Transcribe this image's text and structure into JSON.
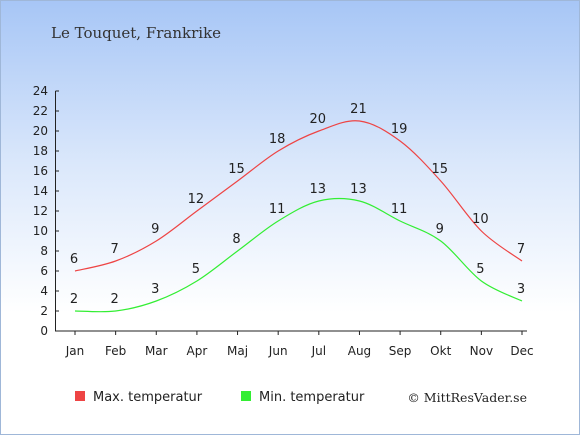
{
  "chart_data": {
    "type": "line",
    "title": "Le Touquet, Frankrike",
    "categories": [
      "Jan",
      "Feb",
      "Mar",
      "Apr",
      "Maj",
      "Jun",
      "Jul",
      "Aug",
      "Sep",
      "Okt",
      "Nov",
      "Dec"
    ],
    "ylim": [
      0,
      24
    ],
    "yticks": [
      0,
      2,
      4,
      6,
      8,
      10,
      12,
      14,
      16,
      18,
      20,
      22,
      24
    ],
    "grid": false,
    "legend_position": "bottom",
    "series": [
      {
        "name": "Max. temperatur",
        "color": "#ee4444",
        "values": [
          6,
          7,
          9,
          12,
          15,
          18,
          20,
          21,
          19,
          15,
          10,
          7
        ]
      },
      {
        "name": "Min. temperatur",
        "color": "#33ee33",
        "values": [
          2,
          2,
          3,
          5,
          8,
          11,
          13,
          13,
          11,
          9,
          5,
          3
        ]
      }
    ]
  },
  "credit": "© MittResVader.se"
}
